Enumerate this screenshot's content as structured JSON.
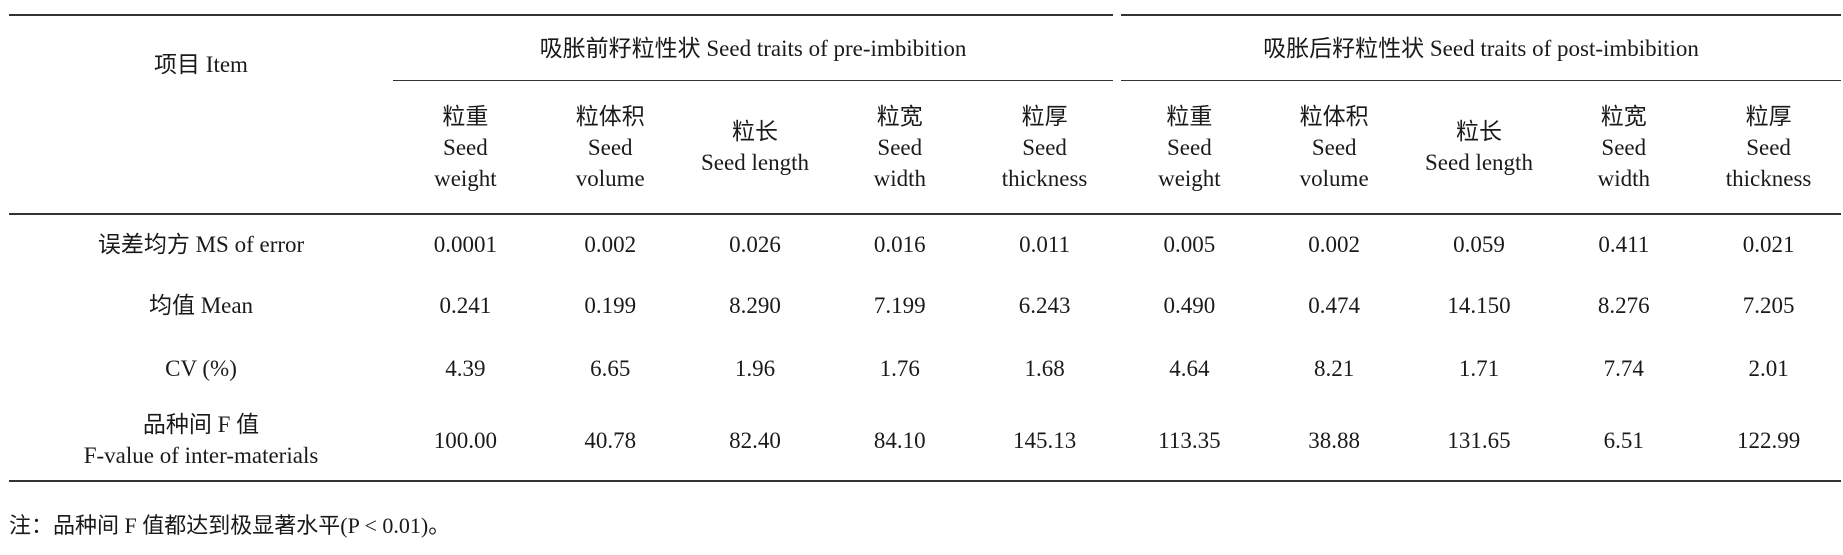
{
  "table": {
    "item_header": "项目 Item",
    "groups": [
      "吸胀前籽粒性状  Seed traits of pre-imbibition",
      "吸胀后籽粒性状  Seed traits of post-imbibition"
    ],
    "columns": [
      {
        "cn": "粒重",
        "en1": "Seed",
        "en2": "weight"
      },
      {
        "cn": "粒体积",
        "en1": "Seed",
        "en2": "volume"
      },
      {
        "cn": "粒长",
        "en1": "Seed length",
        "en2": ""
      },
      {
        "cn": "粒宽",
        "en1": "Seed",
        "en2": "width"
      },
      {
        "cn": "粒厚",
        "en1": "Seed",
        "en2": "thickness"
      },
      {
        "cn": "粒重",
        "en1": "Seed",
        "en2": "weight"
      },
      {
        "cn": "粒体积",
        "en1": "Seed",
        "en2": "volume"
      },
      {
        "cn": "粒长",
        "en1": "Seed length",
        "en2": ""
      },
      {
        "cn": "粒宽",
        "en1": "Seed",
        "en2": "width"
      },
      {
        "cn": "粒厚",
        "en1": "Seed",
        "en2": "thickness"
      }
    ],
    "rows": [
      {
        "label1": "误差均方 MS of error",
        "label2": "",
        "values": [
          "0.0001",
          "0.002",
          "0.026",
          "0.016",
          "0.011",
          "0.005",
          "0.002",
          "0.059",
          "0.411",
          "0.021"
        ]
      },
      {
        "label1": "均值 Mean",
        "label2": "",
        "values": [
          "0.241",
          "0.199",
          "8.290",
          "7.199",
          "6.243",
          "0.490",
          "0.474",
          "14.150",
          "8.276",
          "7.205"
        ]
      },
      {
        "label1": "CV (%)",
        "label2": "",
        "values": [
          "4.39",
          "6.65",
          "1.96",
          "1.76",
          "1.68",
          "4.64",
          "8.21",
          "1.71",
          "7.74",
          "2.01"
        ]
      },
      {
        "label1": "品种间 F 值",
        "label2": "F-value of inter-materials",
        "values": [
          "100.00",
          "40.78",
          "82.40",
          "84.10",
          "145.13",
          "113.35",
          "38.88",
          "131.65",
          "6.51",
          "122.99"
        ]
      }
    ]
  },
  "note": "注：品种间 F 值都达到极显著水平(P < 0.01)。"
}
